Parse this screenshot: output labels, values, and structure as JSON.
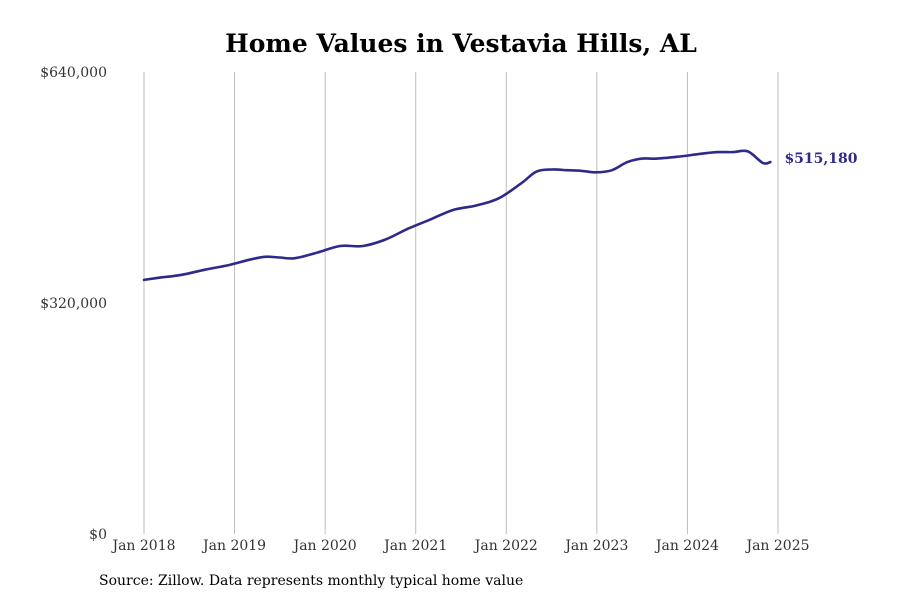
{
  "chart_data": {
    "type": "line",
    "title": "Home Values in Vestavia Hills, AL",
    "xlabel": "",
    "ylabel": "",
    "ylim": [
      0,
      640000
    ],
    "yticks": [
      0,
      320000,
      640000
    ],
    "ytick_labels": [
      "$0",
      "$320,000",
      "$640,000"
    ],
    "xticks": [
      "2018-01",
      "2019-01",
      "2020-01",
      "2021-01",
      "2022-01",
      "2023-01",
      "2024-01",
      "2025-01"
    ],
    "xtick_labels": [
      "Jan 2018",
      "Jan 2019",
      "Jan 2020",
      "Jan 2021",
      "Jan 2022",
      "Jan 2023",
      "Jan 2024",
      "Jan 2025"
    ],
    "grid": "vertical",
    "series_color": "#2e2a8a",
    "end_label": "$515,180",
    "series": [
      {
        "x": [
          "2018-01",
          "2018-03",
          "2018-06",
          "2018-09",
          "2018-12",
          "2019-03",
          "2019-05",
          "2019-07",
          "2019-09",
          "2019-12",
          "2020-03",
          "2020-06",
          "2020-09",
          "2020-12",
          "2021-03",
          "2021-06",
          "2021-09",
          "2021-12",
          "2022-03",
          "2022-05",
          "2022-07",
          "2022-09",
          "2022-11",
          "2023-01",
          "2023-03",
          "2023-05",
          "2023-07",
          "2023-09",
          "2023-12",
          "2024-03",
          "2024-05",
          "2024-07",
          "2024-09",
          "2024-11",
          "2024-12"
        ],
        "values": [
          352000,
          355000,
          359000,
          366000,
          372000,
          380000,
          384000,
          383000,
          382000,
          390000,
          399000,
          399000,
          408000,
          423000,
          436000,
          449000,
          455000,
          465000,
          486000,
          502000,
          505000,
          504000,
          503000,
          501000,
          504000,
          515000,
          520000,
          520000,
          523000,
          527000,
          529000,
          529000,
          530000,
          514000,
          515180
        ]
      }
    ]
  },
  "source_text": "Source: Zillow. Data represents monthly typical home value"
}
